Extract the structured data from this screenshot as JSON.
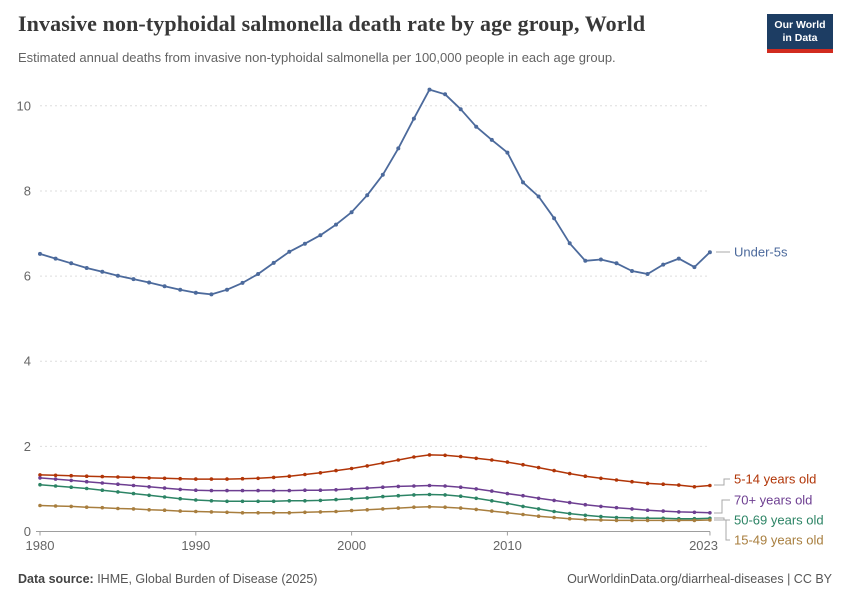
{
  "header": {
    "title": "Invasive non-typhoidal salmonella death rate by age group, World",
    "subtitle": "Estimated annual deaths from invasive non-typhoidal salmonella per 100,000 people in each age group.",
    "logo": {
      "line1": "Our World",
      "line2": "in Data",
      "bg_color": "#1d3d63",
      "accent_color": "#d12b1f"
    }
  },
  "chart_data": {
    "type": "line",
    "title": "Invasive non-typhoidal salmonella death rate by age group, World",
    "subtitle": "Estimated annual deaths from invasive non-typhoidal salmonella per 100,000 people in each age group.",
    "xlabel": "",
    "ylabel": "",
    "grid": "horizontal-dashed",
    "legend_position": "right-of-line-ends",
    "xlim": [
      1980,
      2023
    ],
    "ylim": [
      0,
      10.6
    ],
    "xticks": [
      1980,
      1990,
      2000,
      2010,
      2023
    ],
    "yticks": [
      0,
      2,
      4,
      6,
      8,
      10
    ],
    "x": [
      1980,
      1981,
      1982,
      1983,
      1984,
      1985,
      1986,
      1987,
      1988,
      1989,
      1990,
      1991,
      1992,
      1993,
      1994,
      1995,
      1996,
      1997,
      1998,
      1999,
      2000,
      2001,
      2002,
      2003,
      2004,
      2005,
      2006,
      2007,
      2008,
      2009,
      2010,
      2011,
      2012,
      2013,
      2014,
      2015,
      2016,
      2017,
      2018,
      2019,
      2020,
      2021,
      2022,
      2023
    ],
    "series": [
      {
        "name": "Under-5s",
        "color": "#4c6a9c",
        "values": [
          6.52,
          6.41,
          6.3,
          6.19,
          6.1,
          6.01,
          5.93,
          5.85,
          5.76,
          5.68,
          5.61,
          5.57,
          5.68,
          5.84,
          6.05,
          6.31,
          6.57,
          6.76,
          6.96,
          7.21,
          7.5,
          7.9,
          8.38,
          9.0,
          9.7,
          10.38,
          10.27,
          9.92,
          9.51,
          9.2,
          8.9,
          8.2,
          7.87,
          7.36,
          6.77,
          6.36,
          6.39,
          6.3,
          6.12,
          6.05,
          6.27,
          6.41,
          6.21,
          6.56
        ]
      },
      {
        "name": "5-14 years old",
        "color": "#b13507",
        "values": [
          1.33,
          1.32,
          1.31,
          1.3,
          1.29,
          1.28,
          1.27,
          1.26,
          1.25,
          1.24,
          1.23,
          1.23,
          1.23,
          1.24,
          1.25,
          1.27,
          1.3,
          1.34,
          1.38,
          1.43,
          1.48,
          1.54,
          1.61,
          1.68,
          1.75,
          1.8,
          1.79,
          1.76,
          1.72,
          1.68,
          1.63,
          1.57,
          1.5,
          1.43,
          1.36,
          1.3,
          1.25,
          1.21,
          1.17,
          1.13,
          1.11,
          1.09,
          1.05,
          1.08
        ]
      },
      {
        "name": "70+ years old",
        "color": "#6d3e91",
        "values": [
          1.26,
          1.23,
          1.2,
          1.17,
          1.14,
          1.11,
          1.08,
          1.05,
          1.02,
          0.99,
          0.97,
          0.96,
          0.96,
          0.96,
          0.96,
          0.96,
          0.96,
          0.97,
          0.97,
          0.98,
          1.0,
          1.02,
          1.04,
          1.06,
          1.07,
          1.08,
          1.07,
          1.04,
          1.0,
          0.95,
          0.89,
          0.84,
          0.78,
          0.73,
          0.68,
          0.63,
          0.59,
          0.56,
          0.53,
          0.5,
          0.48,
          0.46,
          0.45,
          0.44
        ]
      },
      {
        "name": "50-69 years old",
        "color": "#2c8465",
        "values": [
          1.1,
          1.07,
          1.04,
          1.01,
          0.97,
          0.93,
          0.89,
          0.85,
          0.81,
          0.77,
          0.74,
          0.72,
          0.71,
          0.71,
          0.71,
          0.71,
          0.72,
          0.72,
          0.73,
          0.75,
          0.77,
          0.79,
          0.82,
          0.84,
          0.86,
          0.87,
          0.86,
          0.83,
          0.78,
          0.72,
          0.66,
          0.59,
          0.53,
          0.47,
          0.42,
          0.38,
          0.35,
          0.33,
          0.32,
          0.31,
          0.31,
          0.3,
          0.3,
          0.31
        ]
      },
      {
        "name": "15-49 years old",
        "color": "#a87e3e",
        "values": [
          0.61,
          0.6,
          0.59,
          0.57,
          0.56,
          0.54,
          0.53,
          0.51,
          0.5,
          0.48,
          0.47,
          0.46,
          0.45,
          0.44,
          0.44,
          0.44,
          0.44,
          0.45,
          0.46,
          0.47,
          0.49,
          0.51,
          0.53,
          0.55,
          0.57,
          0.58,
          0.57,
          0.55,
          0.52,
          0.48,
          0.44,
          0.4,
          0.36,
          0.33,
          0.3,
          0.28,
          0.27,
          0.26,
          0.26,
          0.26,
          0.26,
          0.26,
          0.26,
          0.27
        ]
      }
    ]
  },
  "footer": {
    "source_label": "Data source:",
    "source_text": " IHME, Global Burden of Disease (2025)",
    "link_text": "OurWorldinData.org/diarrheal-diseases | CC BY"
  }
}
